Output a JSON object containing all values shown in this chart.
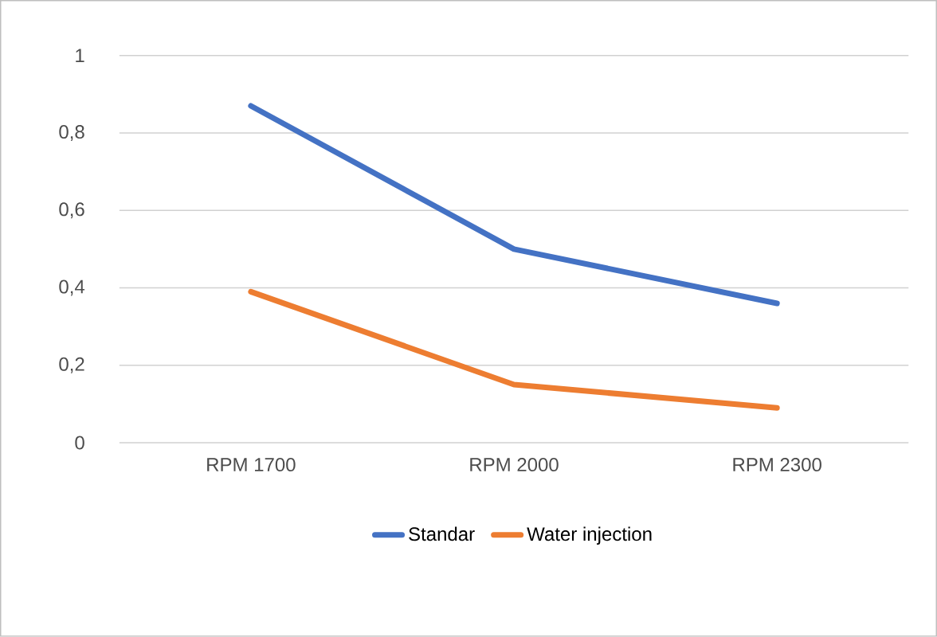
{
  "chart_data": {
    "type": "line",
    "categories": [
      "RPM 1700",
      "RPM 2000",
      "RPM 2300"
    ],
    "series": [
      {
        "name": "Standar",
        "color": "#4472c4",
        "values": [
          0.87,
          0.5,
          0.36
        ]
      },
      {
        "name": "Water injection",
        "color": "#ed7d31",
        "values": [
          0.39,
          0.15,
          0.09
        ]
      }
    ],
    "ylim": [
      0,
      1
    ],
    "yticks": [
      0,
      {
        "value": 0.2,
        "label": "0,2"
      },
      {
        "value": 0.4,
        "label": "0,4"
      },
      {
        "value": 0.6,
        "label": "0,6"
      },
      {
        "value": 0.8,
        "label": "0,8"
      },
      1
    ],
    "grid": "y",
    "legend": "bottom",
    "marker": "none",
    "line_style": "solid"
  }
}
